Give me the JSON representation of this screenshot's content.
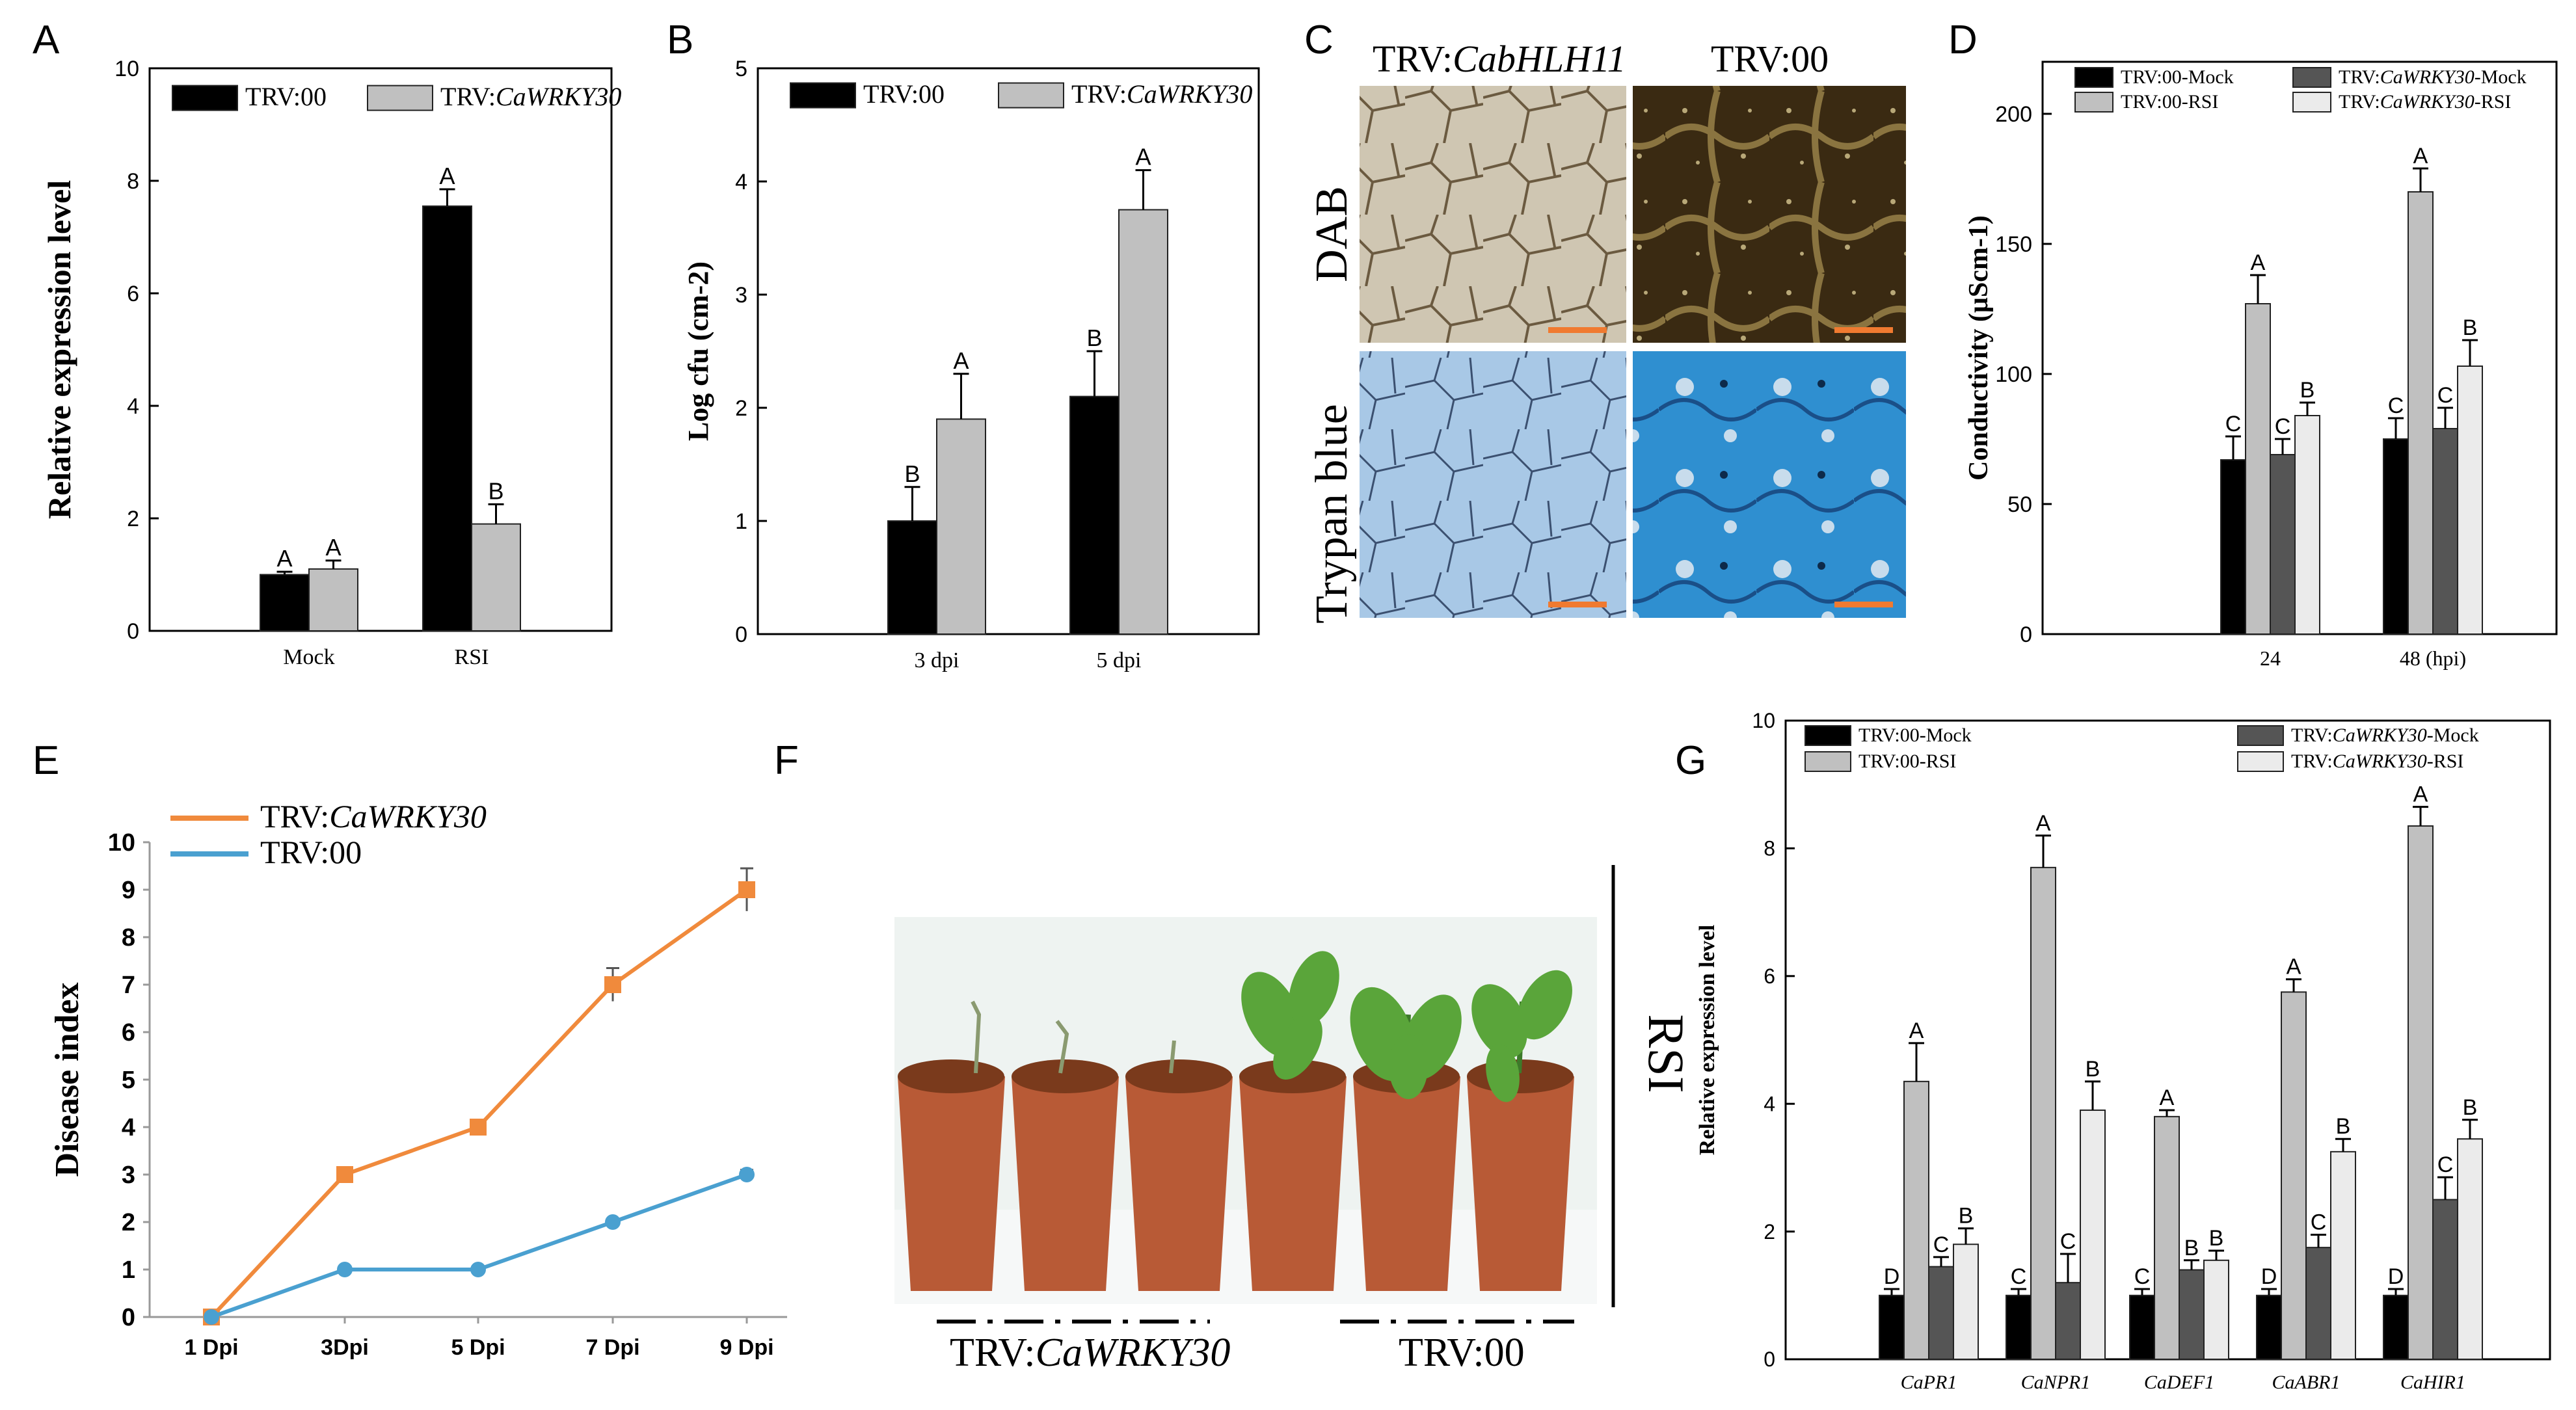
{
  "panel_letters": [
    "A",
    "B",
    "C",
    "D",
    "E",
    "F",
    "G"
  ],
  "chart_data": [
    {
      "id": "A",
      "type": "bar",
      "title": "",
      "xlabel": "",
      "ylabel": "Relative expression level",
      "ylim": [
        0,
        10
      ],
      "yticks": [
        0,
        2,
        4,
        6,
        8,
        10
      ],
      "categories": [
        "Mock",
        "RSI"
      ],
      "series": [
        {
          "name": "TRV:00",
          "legend_prefix": "TRV:00",
          "legend_italic": "",
          "color": "#000000",
          "values": [
            1.0,
            7.55
          ],
          "errors": [
            0.05,
            0.3
          ],
          "letters": [
            "A",
            "A"
          ]
        },
        {
          "name": "TRV:CaWRKY30",
          "legend_prefix": "TRV:",
          "legend_italic": "CaWRKY30",
          "color": "#c0c0c0",
          "values": [
            1.1,
            1.9
          ],
          "errors": [
            0.15,
            0.35
          ],
          "letters": [
            "A",
            "B"
          ]
        }
      ]
    },
    {
      "id": "B",
      "type": "bar",
      "title": "",
      "xlabel": "",
      "ylabel": "Log cfu (cm-2)",
      "ylim": [
        0,
        5
      ],
      "yticks": [
        0,
        1,
        2,
        3,
        4,
        5
      ],
      "categories": [
        "3 dpi",
        "5 dpi"
      ],
      "series": [
        {
          "name": "TRV:00",
          "legend_prefix": "TRV:00",
          "legend_italic": "",
          "color": "#000000",
          "values": [
            1.0,
            2.1
          ],
          "errors": [
            0.3,
            0.4
          ],
          "letters": [
            "B",
            "B"
          ]
        },
        {
          "name": "TRV:CaWRKY30",
          "legend_prefix": "TRV:",
          "legend_italic": "CaWRKY30",
          "color": "#c0c0c0",
          "values": [
            1.9,
            3.75
          ],
          "errors": [
            0.4,
            0.35
          ],
          "letters": [
            "A",
            "A"
          ]
        }
      ]
    },
    {
      "id": "D",
      "type": "bar",
      "title": "",
      "xlabel": "",
      "ylabel": "Conductivity (μScm-1)",
      "ylim": [
        0,
        220
      ],
      "yticks": [
        0,
        50,
        100,
        150,
        200
      ],
      "categories": [
        "24",
        "48 (hpi)"
      ],
      "series": [
        {
          "name": "TRV:00-Mock",
          "legend_prefix": "TRV:00-Mock",
          "legend_italic": "",
          "legend_suffix": "",
          "color": "#000000",
          "values": [
            67,
            75
          ],
          "errors": [
            9,
            8
          ],
          "letters": [
            "C",
            "C"
          ]
        },
        {
          "name": "TRV:00-RSI",
          "legend_prefix": "TRV:00-RSI",
          "legend_italic": "",
          "legend_suffix": "",
          "color": "#c0c0c0",
          "values": [
            127,
            170
          ],
          "errors": [
            11,
            9
          ],
          "letters": [
            "A",
            "A"
          ]
        },
        {
          "name": "TRV:CaWRKY30-Mock",
          "legend_prefix": "TRV:",
          "legend_italic": "CaWRKY30",
          "legend_suffix": "-Mock",
          "color": "#555555",
          "values": [
            69,
            79
          ],
          "errors": [
            6,
            8
          ],
          "letters": [
            "C",
            "C"
          ]
        },
        {
          "name": "TRV:CaWRKY30-RSI",
          "legend_prefix": "TRV:",
          "legend_italic": "CaWRKY30",
          "legend_suffix": "-RSI",
          "color": "#ebebeb",
          "values": [
            84,
            103
          ],
          "errors": [
            5,
            10
          ],
          "letters": [
            "B",
            "B"
          ]
        }
      ]
    },
    {
      "id": "E",
      "type": "line",
      "title": "",
      "xlabel": "",
      "ylabel": "Disease index",
      "ylim": [
        0,
        10
      ],
      "yticks": [
        0,
        1,
        2,
        3,
        4,
        5,
        6,
        7,
        8,
        9,
        10
      ],
      "categories": [
        "1 Dpi",
        "3Dpi",
        "5 Dpi",
        "7 Dpi",
        "9 Dpi"
      ],
      "series": [
        {
          "name": "TRV:CaWRKY30",
          "legend_prefix": "TRV:",
          "legend_italic": "CaWRKY30",
          "color": "#f08a3c",
          "values": [
            0,
            3,
            4,
            7,
            9
          ],
          "errors": [
            0,
            0.1,
            0.15,
            0.35,
            0.45
          ]
        },
        {
          "name": "TRV:00",
          "legend_prefix": "TRV:00",
          "legend_italic": "",
          "color": "#4aa0d0",
          "values": [
            0,
            1,
            1,
            2,
            3
          ],
          "errors": [
            0,
            0,
            0,
            0,
            0.1
          ]
        }
      ]
    },
    {
      "id": "G",
      "type": "bar",
      "title": "",
      "xlabel": "",
      "ylabel": "Relative expression level",
      "ylim": [
        0,
        10
      ],
      "yticks": [
        0,
        2,
        4,
        6,
        8,
        10
      ],
      "categories": [
        "CaPR1",
        "CaNPR1",
        "CaDEF1",
        "CaABR1",
        "CaHIR1"
      ],
      "series": [
        {
          "name": "TRV:00-Mock",
          "legend_prefix": "TRV:00-Mock",
          "legend_italic": "",
          "legend_suffix": "",
          "color": "#000000",
          "values": [
            1,
            1,
            1,
            1,
            1
          ],
          "errors": [
            0.1,
            0.1,
            0.1,
            0.1,
            0.1
          ],
          "letters": [
            "D",
            "C",
            "C",
            "D",
            "D"
          ]
        },
        {
          "name": "TRV:00-RSI",
          "legend_prefix": "TRV:00-RSI",
          "legend_italic": "",
          "legend_suffix": "",
          "color": "#c0c0c0",
          "values": [
            4.35,
            7.7,
            3.8,
            5.75,
            8.35
          ],
          "errors": [
            0.6,
            0.5,
            0.1,
            0.2,
            0.3
          ],
          "letters": [
            "A",
            "A",
            "A",
            "A",
            "A"
          ]
        },
        {
          "name": "TRV:CaWRKY30-Mock",
          "legend_prefix": "TRV:",
          "legend_italic": "CaWRKY30",
          "legend_suffix": "-Mock",
          "color": "#555555",
          "values": [
            1.45,
            1.2,
            1.4,
            1.75,
            2.5
          ],
          "errors": [
            0.15,
            0.45,
            0.15,
            0.2,
            0.35
          ],
          "letters": [
            "C",
            "C",
            "B",
            "C",
            "C"
          ]
        },
        {
          "name": "TRV:CaWRKY30-RSI",
          "legend_prefix": "TRV:",
          "legend_italic": "CaWRKY30",
          "legend_suffix": "-RSI",
          "color": "#ebebeb",
          "values": [
            1.8,
            3.9,
            1.55,
            3.25,
            3.45
          ],
          "errors": [
            0.25,
            0.45,
            0.15,
            0.2,
            0.3
          ],
          "letters": [
            "B",
            "B",
            "B",
            "B",
            "B"
          ]
        }
      ]
    }
  ],
  "panel_c": {
    "col_prefix_1": "TRV:",
    "col_italic_1": "CabHLH11",
    "col_label_2": "TRV:00",
    "row_label_1": "DAB",
    "row_label_2": "Trypan blue",
    "colors": {
      "dab_light": "#cfc6b2",
      "dab_dark": "#3a2a12",
      "trypan_light": "#a8c8e6",
      "trypan_dark": "#2f8fd0",
      "scale_bar": "#f07a30"
    }
  },
  "panel_f": {
    "side_label": "RSI",
    "bottom_prefix": "TRV:",
    "bottom_italic": "CaWRKY30",
    "bottom_label_2": "TRV:00",
    "colors": {
      "pot": "#b85a36",
      "leaf": "#5aa53a",
      "background": "#eef3f1"
    }
  }
}
